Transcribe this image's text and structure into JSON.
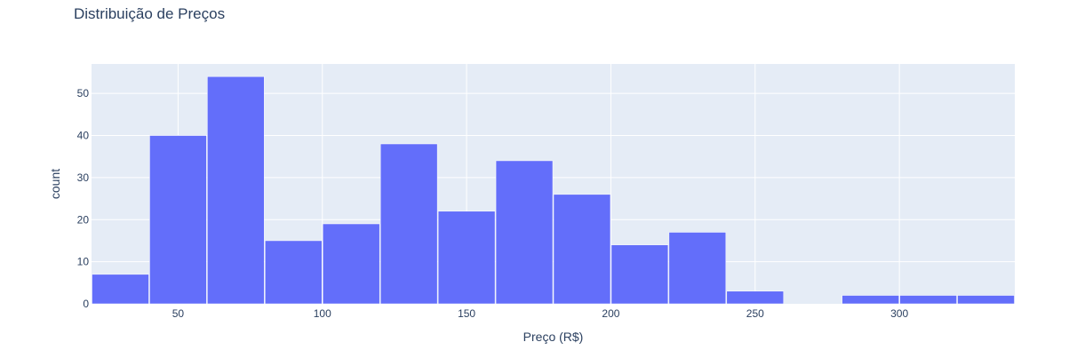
{
  "chart_data": {
    "type": "bar",
    "title": "Distribuição de Preços",
    "xlabel": "Preço (R$)",
    "ylabel": "count",
    "bin_width": 20,
    "bins": [
      {
        "start": 20,
        "end": 40,
        "count": 7
      },
      {
        "start": 40,
        "end": 60,
        "count": 40
      },
      {
        "start": 60,
        "end": 80,
        "count": 54
      },
      {
        "start": 80,
        "end": 100,
        "count": 15
      },
      {
        "start": 100,
        "end": 120,
        "count": 19
      },
      {
        "start": 120,
        "end": 140,
        "count": 38
      },
      {
        "start": 140,
        "end": 160,
        "count": 22
      },
      {
        "start": 160,
        "end": 180,
        "count": 34
      },
      {
        "start": 180,
        "end": 200,
        "count": 26
      },
      {
        "start": 200,
        "end": 220,
        "count": 14
      },
      {
        "start": 220,
        "end": 240,
        "count": 17
      },
      {
        "start": 240,
        "end": 260,
        "count": 3
      },
      {
        "start": 260,
        "end": 280,
        "count": 0
      },
      {
        "start": 280,
        "end": 300,
        "count": 2
      },
      {
        "start": 300,
        "end": 320,
        "count": 2
      },
      {
        "start": 320,
        "end": 340,
        "count": 2
      }
    ],
    "xlim": [
      20,
      340
    ],
    "ylim": [
      0,
      57
    ],
    "x_ticks": [
      50,
      100,
      150,
      200,
      250,
      300
    ],
    "y_ticks": [
      0,
      10,
      20,
      30,
      40,
      50
    ],
    "grid": true,
    "colors": {
      "bar": "#636efa",
      "plot_bg": "#e5ecf6",
      "grid": "#ffffff",
      "text": "#2a3f5f"
    }
  }
}
